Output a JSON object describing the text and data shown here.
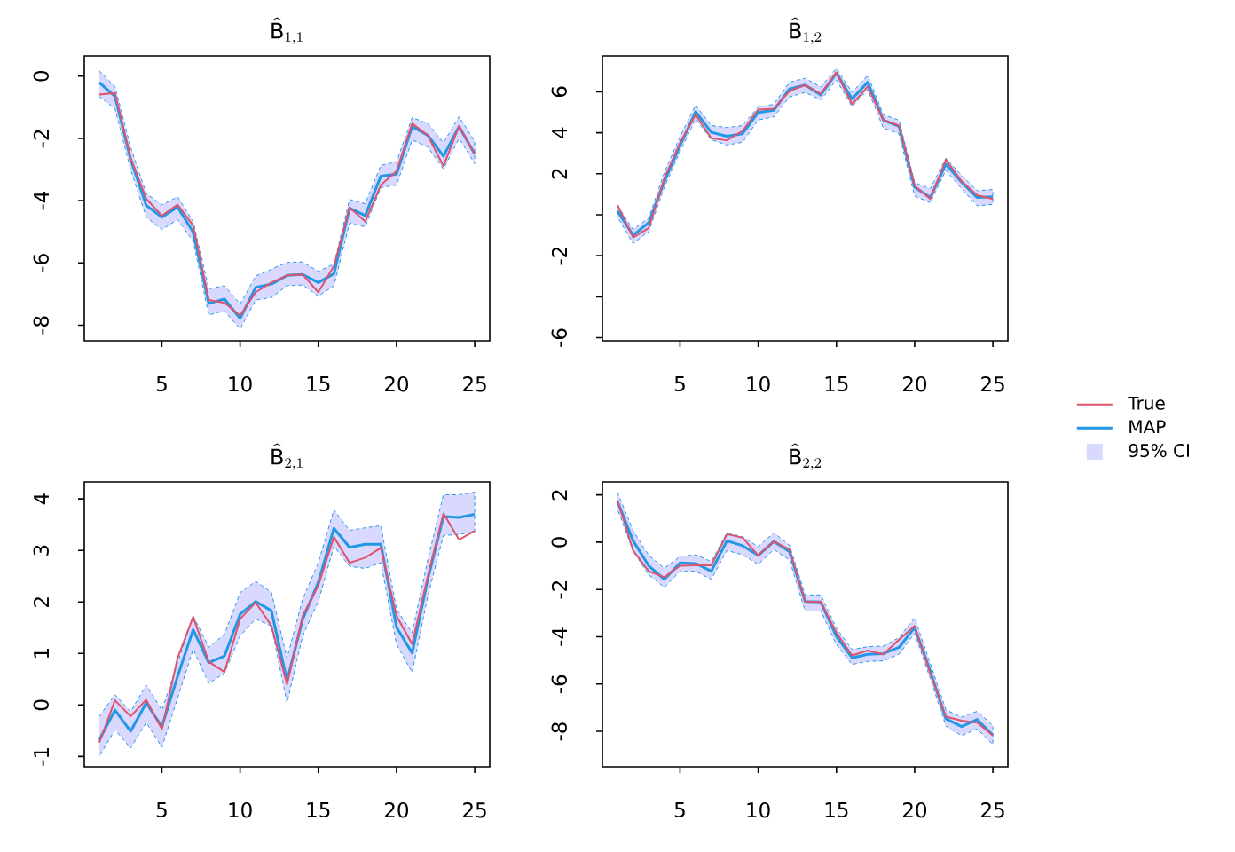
{
  "chart_data": [
    {
      "type": "line",
      "title": "\\widehat{\\mathrm{B}}_{1,1}",
      "x": [
        1,
        2,
        3,
        4,
        5,
        6,
        7,
        8,
        9,
        10,
        11,
        12,
        13,
        14,
        15,
        16,
        17,
        18,
        19,
        20,
        21,
        22,
        23,
        24,
        25
      ],
      "xlim": [
        0.04,
        25.96
      ],
      "xticks": [
        5,
        10,
        15,
        20,
        25
      ],
      "ylim": [
        -8.5,
        0.65
      ],
      "yticks": [
        -8,
        -6,
        -4,
        -2,
        0
      ],
      "line_style": "solid",
      "series": [
        {
          "color": "#df536b",
          "values": [
            -0.59,
            -0.54,
            -2.62,
            -3.94,
            -4.48,
            -4.13,
            -4.8,
            -7.19,
            -7.28,
            -7.69,
            -6.94,
            -6.63,
            -6.4,
            -6.37,
            -6.94,
            -6.1,
            -4.22,
            -4.67,
            -3.5,
            -3.05,
            -1.52,
            -1.9,
            -2.89,
            -1.6,
            -2.5
          ]
        },
        {
          "color": "#2297e6",
          "values": [
            -0.2,
            -0.65,
            -2.67,
            -4.15,
            -4.53,
            -4.2,
            -5.01,
            -7.3,
            -7.16,
            -7.78,
            -6.78,
            -6.68,
            -6.4,
            -6.37,
            -6.63,
            -6.35,
            -4.24,
            -4.48,
            -3.21,
            -3.15,
            -1.62,
            -1.9,
            -2.57,
            -1.62,
            -2.5
          ],
          "upper": [
            0.17,
            -0.33,
            -2.28,
            -3.77,
            -4.13,
            -3.88,
            -4.67,
            -6.83,
            -6.73,
            -7.32,
            -6.42,
            -6.2,
            -5.98,
            -5.97,
            -6.27,
            -6.04,
            -3.96,
            -4.1,
            -2.86,
            -2.76,
            -1.33,
            -1.52,
            -2.14,
            -1.3,
            -2.09
          ],
          "lower": [
            -0.66,
            -1.04,
            -3.0,
            -4.53,
            -4.93,
            -4.61,
            -5.3,
            -7.67,
            -7.54,
            -8.12,
            -7.19,
            -7.11,
            -6.73,
            -6.71,
            -7.07,
            -6.73,
            -4.72,
            -4.84,
            -3.58,
            -3.5,
            -2.05,
            -2.28,
            -2.98,
            -2.0,
            -2.81
          ]
        }
      ]
    },
    {
      "type": "line",
      "title": "\\widehat{\\mathrm{B}}_{1,2}",
      "x": [
        1,
        2,
        3,
        4,
        5,
        6,
        7,
        8,
        9,
        10,
        11,
        12,
        13,
        14,
        15,
        16,
        17,
        18,
        19,
        20,
        21,
        22,
        23,
        24,
        25
      ],
      "xlim": [
        0.04,
        25.96
      ],
      "xticks": [
        5,
        10,
        15,
        20,
        25
      ],
      "ylim": [
        -6.15,
        7.75
      ],
      "yticks": [
        -6,
        {
          "value": -4,
          "label": null
        },
        -2,
        {
          "value": 0,
          "label": null
        },
        2,
        4,
        6
      ],
      "line_style": "solid",
      "legend": "right",
      "annotations": [
        "95% CI"
      ],
      "series": [
        {
          "name": "True",
          "color": "#df536b",
          "values": [
            0.48,
            -1.11,
            -0.65,
            1.78,
            3.51,
            4.88,
            3.73,
            3.63,
            4.09,
            5.13,
            5.17,
            6.04,
            6.33,
            5.9,
            6.95,
            5.39,
            6.26,
            4.62,
            4.35,
            1.42,
            0.77,
            2.69,
            1.63,
            0.95,
            0.77
          ]
        },
        {
          "name": "MAP",
          "color": "#2297e6",
          "values": [
            0.19,
            -1.0,
            -0.39,
            1.63,
            3.37,
            5.03,
            4.02,
            3.83,
            3.95,
            4.99,
            5.1,
            6.14,
            6.33,
            5.85,
            6.91,
            5.65,
            6.47,
            4.62,
            4.31,
            1.34,
            0.84,
            2.47,
            1.59,
            0.84,
            0.87
          ],
          "upper": [
            0.45,
            -0.71,
            -0.17,
            2.07,
            3.8,
            5.35,
            4.35,
            4.26,
            4.35,
            5.25,
            5.39,
            6.47,
            6.66,
            6.23,
            7.15,
            5.97,
            6.81,
            4.88,
            4.62,
            1.56,
            1.27,
            2.76,
            1.92,
            1.17,
            1.23
          ],
          "lower": [
            -0.1,
            -1.4,
            -0.82,
            1.34,
            3.08,
            4.67,
            3.66,
            3.4,
            3.54,
            4.62,
            4.78,
            5.75,
            5.97,
            5.61,
            6.58,
            5.27,
            6.11,
            4.23,
            3.95,
            0.91,
            0.59,
            2.17,
            1.27,
            0.43,
            0.51
          ]
        }
      ]
    },
    {
      "type": "line",
      "title": "\\widehat{\\mathrm{B}}_{2,1}",
      "x": [
        1,
        2,
        3,
        4,
        5,
        6,
        7,
        8,
        9,
        10,
        11,
        12,
        13,
        14,
        15,
        16,
        17,
        18,
        19,
        20,
        21,
        22,
        23,
        24,
        25
      ],
      "xlim": [
        0.04,
        25.96
      ],
      "xticks": [
        5,
        10,
        15,
        20,
        25
      ],
      "ylim": [
        -1.2,
        4.33
      ],
      "yticks": [
        -1,
        0,
        1,
        2,
        3,
        4
      ],
      "line_style": "solid",
      "series": [
        {
          "color": "#df536b",
          "values": [
            -0.73,
            0.09,
            -0.22,
            0.1,
            -0.47,
            0.91,
            1.71,
            0.84,
            0.64,
            1.67,
            1.99,
            1.54,
            0.4,
            1.73,
            2.32,
            3.26,
            2.76,
            2.86,
            3.05,
            1.73,
            1.18,
            2.5,
            3.72,
            3.21,
            3.38
          ]
        },
        {
          "color": "#2297e6",
          "values": [
            -0.68,
            -0.1,
            -0.51,
            0.04,
            -0.42,
            0.55,
            1.46,
            0.82,
            0.95,
            1.76,
            2.01,
            1.83,
            0.47,
            1.66,
            2.38,
            3.43,
            3.06,
            3.12,
            3.12,
            1.51,
            1.01,
            2.44,
            3.66,
            3.64,
            3.7
          ],
          "upper": [
            -0.22,
            0.2,
            -0.13,
            0.39,
            -0.1,
            0.81,
            1.73,
            1.12,
            1.37,
            2.18,
            2.4,
            2.19,
            0.91,
            2.06,
            2.76,
            3.79,
            3.39,
            3.44,
            3.48,
            1.86,
            1.4,
            2.82,
            4.08,
            4.08,
            4.13
          ],
          "lower": [
            -1.0,
            -0.48,
            -0.84,
            -0.34,
            -0.82,
            0.13,
            1.08,
            0.42,
            0.62,
            1.34,
            1.67,
            1.53,
            0.04,
            1.34,
            2.01,
            3.08,
            2.69,
            2.65,
            2.76,
            1.18,
            0.63,
            2.11,
            3.29,
            3.31,
            3.36
          ]
        }
      ]
    },
    {
      "type": "line",
      "title": "\\widehat{\\mathrm{B}}_{2,2}",
      "x": [
        1,
        2,
        3,
        4,
        5,
        6,
        7,
        8,
        9,
        10,
        11,
        12,
        13,
        14,
        15,
        16,
        17,
        18,
        19,
        20,
        21,
        22,
        23,
        24,
        25
      ],
      "xlim": [
        0.04,
        25.96
      ],
      "xticks": [
        5,
        10,
        15,
        20,
        25
      ],
      "ylim": [
        -9.5,
        2.55
      ],
      "yticks": [
        -8,
        -6,
        -4,
        -2,
        0,
        2
      ],
      "line_style": "solid",
      "series": [
        {
          "color": "#df536b",
          "values": [
            1.78,
            -0.35,
            -1.23,
            -1.48,
            -1.0,
            -0.98,
            -0.98,
            0.34,
            0.19,
            -0.56,
            0.03,
            -0.31,
            -2.51,
            -2.53,
            -3.83,
            -4.79,
            -4.58,
            -4.74,
            -4.12,
            -3.54,
            -5.55,
            -7.38,
            -7.55,
            -7.63,
            -8.18
          ]
        },
        {
          "color": "#2297e6",
          "values": [
            1.73,
            0.06,
            -1.0,
            -1.57,
            -0.88,
            -0.9,
            -1.23,
            0.06,
            -0.15,
            -0.56,
            0.03,
            -0.4,
            -2.51,
            -2.53,
            -3.99,
            -4.89,
            -4.74,
            -4.71,
            -4.45,
            -3.61,
            -5.46,
            -7.47,
            -7.8,
            -7.5,
            -8.16
          ],
          "upper": [
            2.11,
            0.5,
            -0.56,
            -1.1,
            -0.6,
            -0.53,
            -0.82,
            0.4,
            0.23,
            -0.19,
            0.4,
            -0.13,
            -2.23,
            -2.23,
            -3.64,
            -4.54,
            -4.42,
            -4.39,
            -4.04,
            -3.2,
            -5.14,
            -7.09,
            -7.4,
            -7.15,
            -7.75
          ],
          "lower": [
            1.41,
            -0.38,
            -1.38,
            -1.91,
            -1.23,
            -1.23,
            -1.57,
            -0.35,
            -0.53,
            -0.94,
            -0.31,
            -0.75,
            -2.91,
            -2.91,
            -4.33,
            -5.17,
            -5.04,
            -5.02,
            -4.74,
            -3.86,
            -5.77,
            -7.78,
            -8.18,
            -7.9,
            -8.56
          ]
        }
      ]
    }
  ]
}
